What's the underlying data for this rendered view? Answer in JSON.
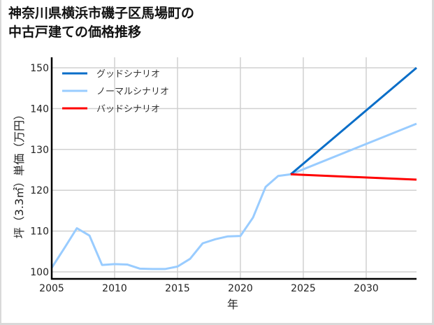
{
  "title_line1": "神奈川県横浜市磯子区馬場町の",
  "title_line2": "中古戸建ての価格推移",
  "chart_data": {
    "type": "line",
    "title": "神奈川県横浜市磯子区馬場町の中古戸建ての価格推移",
    "xlabel": "年",
    "ylabel": "坪（3.3㎡）単価（万円）",
    "xlim": [
      2005,
      2034
    ],
    "ylim": [
      98.5,
      152
    ],
    "xticks": [
      2005,
      2010,
      2015,
      2020,
      2025,
      2030
    ],
    "yticks": [
      100,
      110,
      120,
      130,
      140,
      150
    ],
    "grid": true,
    "legend_position": "upper left",
    "series": [
      {
        "name": "グッドシナリオ",
        "color": "#0a6ec8",
        "x": [
          2024,
          2034
        ],
        "values": [
          123.9,
          150.0
        ]
      },
      {
        "name": "ノーマルシナリオ",
        "color": "#99ccff",
        "x": [
          2005,
          2006,
          2007,
          2008,
          2009,
          2010,
          2011,
          2012,
          2013,
          2014,
          2015,
          2016,
          2017,
          2018,
          2019,
          2020,
          2021,
          2022,
          2023,
          2024,
          2034
        ],
        "values": [
          101.0,
          105.8,
          110.7,
          108.9,
          101.7,
          101.9,
          101.8,
          100.8,
          100.7,
          100.7,
          101.3,
          103.2,
          107.0,
          108.0,
          108.7,
          108.8,
          113.3,
          120.8,
          123.5,
          123.9,
          136.3
        ]
      },
      {
        "name": "バッドシナリオ",
        "color": "#ff0000",
        "x": [
          2024,
          2034
        ],
        "values": [
          123.9,
          122.6
        ]
      }
    ]
  }
}
